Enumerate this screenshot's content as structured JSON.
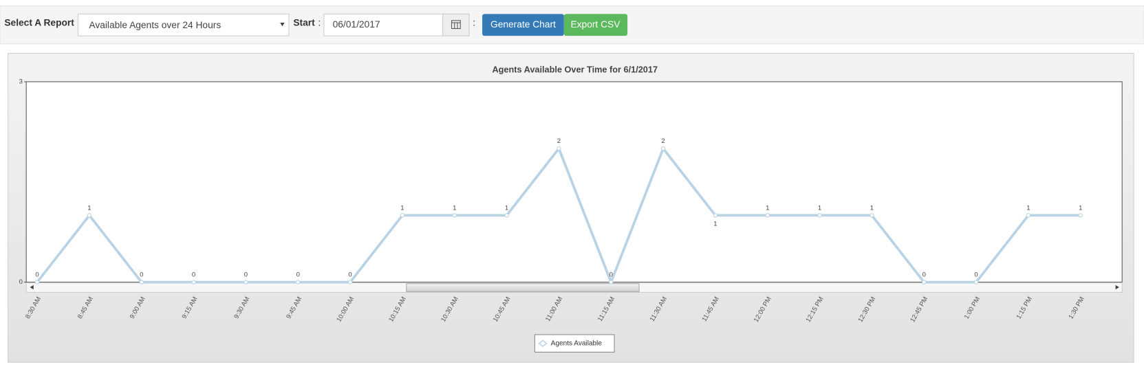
{
  "toolbar": {
    "report_label": "Select A Report",
    "report_selected": "Available Agents over 24 Hours",
    "start_label": "Start",
    "start_sep": ":",
    "start_value": "06/01/2017",
    "date_sep": ":",
    "buttons": [
      "Generate Chart",
      "Export CSV"
    ]
  },
  "chart_data": {
    "type": "line",
    "title": "Agents Available Over Time for 6/1/2017",
    "categories": [
      "8:30 AM",
      "8:45 AM",
      "9:00 AM",
      "9:15 AM",
      "9:30 AM",
      "9:45 AM",
      "10:00 AM",
      "10:15 AM",
      "10:30 AM",
      "10:45 AM",
      "11:00 AM",
      "11:15 AM",
      "11:30 AM",
      "11:45 AM",
      "12:00 PM",
      "12:15 PM",
      "12:30 PM",
      "12:45 PM",
      "1:00 PM",
      "1:15 PM",
      "1:30 PM"
    ],
    "series": [
      {
        "name": "Agents Available",
        "color": "#b9d3e4",
        "values": [
          0,
          1,
          0,
          0,
          0,
          0,
          0,
          1,
          1,
          1,
          2,
          0,
          2,
          1,
          1,
          1,
          1,
          0,
          0,
          1,
          1
        ]
      }
    ],
    "ylim": [
      0,
      3
    ],
    "yticks": [
      0,
      3
    ],
    "grid": false,
    "legend": "bottom"
  }
}
